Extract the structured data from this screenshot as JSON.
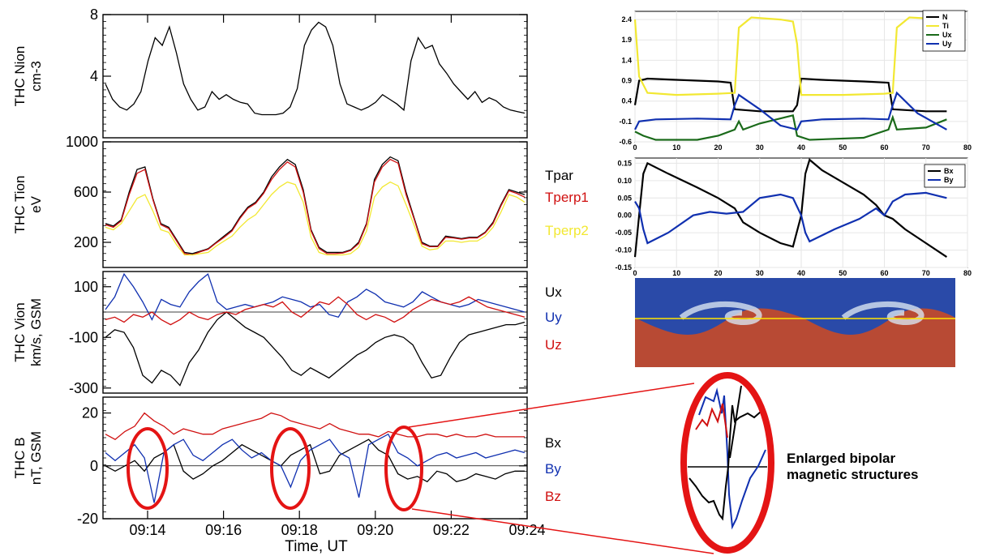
{
  "colors": {
    "black": "#000000",
    "red": "#d01010",
    "blue": "#1030b0",
    "yellow": "#f2e832",
    "green": "#1a6a1a",
    "sim_top": "#2a4aa8",
    "sim_bottom": "#b84a34",
    "circle": "#e41414"
  },
  "left_panels": [
    {
      "id": "nion",
      "ylabel": [
        "THC Nion",
        "cm-3"
      ],
      "ticks": [
        {
          "v": 4,
          "label": "4"
        },
        {
          "v": 8,
          "label": "8"
        }
      ],
      "ylim": [
        0,
        8
      ],
      "series": [
        {
          "label": "",
          "color": "black",
          "values": [
            3.5,
            2.5,
            2.0,
            1.8,
            2.2,
            3,
            5,
            6.5,
            6,
            7.2,
            5.5,
            3.5,
            2.5,
            1.8,
            2,
            3,
            2.5,
            2.8,
            2.5,
            2.3,
            2.2,
            1.6,
            1.5,
            1.5,
            1.5,
            1.6,
            2.0,
            3.2,
            6.0,
            7.0,
            7.5,
            7.2,
            6.0,
            3.5,
            2.2,
            2.0,
            1.8,
            2.0,
            2.3,
            2.8,
            2.5,
            2.2,
            1.8,
            5.0,
            6.5,
            5.8,
            6.0,
            4.8,
            4.2,
            3.5,
            3.0,
            2.5,
            3.0,
            2.3,
            2.6,
            2.4,
            2.0,
            1.8,
            1.7,
            1.6
          ]
        }
      ]
    },
    {
      "id": "tion",
      "ylabel": [
        "THC Tion",
        "eV"
      ],
      "ticks": [
        {
          "v": 200,
          "label": "200"
        },
        {
          "v": 600,
          "label": "600"
        },
        {
          "v": 1000,
          "label": "1000"
        }
      ],
      "ylim": [
        0,
        1000
      ],
      "series": [
        {
          "label": "Tpar",
          "color": "black",
          "values": [
            350,
            330,
            380,
            600,
            780,
            800,
            550,
            350,
            320,
            220,
            120,
            110,
            130,
            150,
            200,
            250,
            300,
            400,
            480,
            520,
            600,
            720,
            800,
            860,
            820,
            620,
            300,
            160,
            120,
            120,
            120,
            140,
            200,
            350,
            700,
            820,
            880,
            850,
            600,
            400,
            200,
            170,
            170,
            250,
            240,
            230,
            240,
            240,
            280,
            360,
            500,
            620,
            600,
            580
          ]
        },
        {
          "label": "Tperp1",
          "color": "red",
          "values": [
            340,
            320,
            370,
            580,
            750,
            780,
            540,
            340,
            310,
            210,
            110,
            100,
            125,
            145,
            195,
            240,
            290,
            390,
            470,
            510,
            590,
            700,
            780,
            840,
            800,
            600,
            290,
            150,
            110,
            110,
            115,
            135,
            190,
            340,
            680,
            800,
            860,
            830,
            580,
            390,
            190,
            165,
            165,
            240,
            235,
            225,
            235,
            235,
            275,
            350,
            490,
            610,
            590,
            560
          ]
        },
        {
          "label": "Tperp2",
          "color": "yellow",
          "values": [
            320,
            300,
            350,
            450,
            550,
            580,
            450,
            300,
            280,
            180,
            100,
            100,
            110,
            120,
            170,
            210,
            250,
            320,
            380,
            420,
            500,
            580,
            640,
            680,
            660,
            520,
            240,
            120,
            100,
            100,
            100,
            110,
            160,
            290,
            560,
            640,
            680,
            650,
            500,
            340,
            170,
            140,
            150,
            210,
            210,
            200,
            210,
            210,
            250,
            320,
            440,
            580,
            560,
            520
          ]
        }
      ]
    },
    {
      "id": "vion",
      "ylabel": [
        "THC Vion",
        "km/s, GSM"
      ],
      "ticks": [
        {
          "v": -300,
          "label": "-300"
        },
        {
          "v": -100,
          "label": "-100"
        },
        {
          "v": 100,
          "label": "100"
        }
      ],
      "ylim": [
        -320,
        160
      ],
      "series": [
        {
          "label": "Ux",
          "color": "black",
          "values": [
            -100,
            -70,
            -80,
            -140,
            -250,
            -280,
            -230,
            -250,
            -290,
            -200,
            -150,
            -80,
            -30,
            0,
            -30,
            -60,
            -80,
            -100,
            -140,
            -180,
            -230,
            -250,
            -220,
            -240,
            -260,
            -230,
            -200,
            -170,
            -150,
            -120,
            -100,
            -90,
            -100,
            -130,
            -200,
            -260,
            -250,
            -180,
            -120,
            -90,
            -80,
            -70,
            -60,
            -50,
            -50,
            -40
          ]
        },
        {
          "label": "Uy",
          "color": "blue",
          "values": [
            10,
            60,
            150,
            100,
            40,
            -30,
            50,
            30,
            20,
            80,
            120,
            150,
            40,
            10,
            20,
            30,
            20,
            30,
            40,
            60,
            50,
            40,
            20,
            30,
            -10,
            -20,
            40,
            60,
            90,
            70,
            40,
            30,
            20,
            40,
            80,
            60,
            40,
            30,
            20,
            30,
            50,
            40,
            30,
            20,
            10,
            0
          ]
        },
        {
          "label": "Uz",
          "color": "red",
          "values": [
            -30,
            -20,
            -40,
            -10,
            -20,
            0,
            -30,
            -50,
            -30,
            0,
            -20,
            -30,
            -10,
            0,
            -10,
            10,
            20,
            30,
            20,
            40,
            0,
            -20,
            10,
            40,
            30,
            60,
            30,
            -10,
            -30,
            -10,
            -20,
            -40,
            -20,
            10,
            30,
            50,
            40,
            30,
            40,
            60,
            40,
            20,
            10,
            0,
            -10,
            -20
          ]
        }
      ]
    },
    {
      "id": "bfield",
      "ylabel": [
        "THC B",
        "nT, GSM"
      ],
      "ticks": [
        {
          "v": -20,
          "label": "-20"
        },
        {
          "v": 0,
          "label": "0"
        },
        {
          "v": 20,
          "label": "20"
        }
      ],
      "ylim": [
        -20,
        26
      ],
      "series": [
        {
          "label": "Bx",
          "color": "black",
          "values": [
            0,
            -2,
            0,
            2,
            -2,
            3,
            5,
            8,
            -2,
            -5,
            -3,
            0,
            2,
            5,
            8,
            6,
            4,
            2,
            0,
            4,
            6,
            8,
            -3,
            -2,
            4,
            6,
            8,
            10,
            6,
            4,
            -3,
            -5,
            -4,
            -6,
            -2,
            -3,
            -6,
            -5,
            -3,
            -4,
            -5,
            -3,
            -2,
            -2
          ]
        },
        {
          "label": "By",
          "color": "blue",
          "values": [
            5,
            2,
            5,
            8,
            3,
            -14,
            5,
            8,
            10,
            4,
            2,
            5,
            8,
            10,
            6,
            3,
            5,
            2,
            0,
            -8,
            2,
            6,
            8,
            10,
            5,
            3,
            -12,
            8,
            10,
            12,
            5,
            3,
            0,
            2,
            4,
            5,
            3,
            4,
            5,
            3,
            4,
            5,
            6,
            5
          ]
        },
        {
          "label": "Bz",
          "color": "red",
          "values": [
            12,
            10,
            13,
            15,
            20,
            17,
            15,
            12,
            14,
            13,
            12,
            12,
            14,
            15,
            16,
            17,
            18,
            20,
            19,
            17,
            16,
            15,
            14,
            16,
            14,
            13,
            12,
            12,
            11,
            13,
            12,
            11,
            11,
            12,
            12,
            11,
            12,
            11,
            11,
            12,
            11,
            11,
            11,
            11
          ]
        }
      ]
    }
  ],
  "time_axis": {
    "xlabel": "Time, UT",
    "ticks": [
      "09:14",
      "09:16",
      "09:18",
      "09:20",
      "09:22",
      "09:24"
    ]
  },
  "sim_panel_top": {
    "xticks": [
      "0",
      "10",
      "20",
      "30",
      "40",
      "50",
      "60",
      "70",
      "80"
    ],
    "yticks": [
      "-0.6",
      "-0.1",
      "0.4",
      "0.9",
      "1.4",
      "1.9",
      "2.4"
    ],
    "legend": [
      "N",
      "Ti",
      "Ux",
      "Uy"
    ],
    "series": [
      {
        "name": "N",
        "color": "black",
        "points": [
          [
            0,
            0.3
          ],
          [
            1,
            0.9
          ],
          [
            3,
            0.95
          ],
          [
            10,
            0.92
          ],
          [
            20,
            0.88
          ],
          [
            23,
            0.85
          ],
          [
            24,
            0.2
          ],
          [
            30,
            0.15
          ],
          [
            38,
            0.15
          ],
          [
            39,
            0.3
          ],
          [
            40,
            0.95
          ],
          [
            45,
            0.92
          ],
          [
            55,
            0.88
          ],
          [
            61,
            0.85
          ],
          [
            62,
            0.2
          ],
          [
            70,
            0.15
          ],
          [
            75,
            0.15
          ]
        ]
      },
      {
        "name": "Ti",
        "color": "yellow",
        "points": [
          [
            0,
            2.4
          ],
          [
            1,
            1.0
          ],
          [
            3,
            0.6
          ],
          [
            10,
            0.55
          ],
          [
            20,
            0.58
          ],
          [
            24,
            0.6
          ],
          [
            25,
            2.2
          ],
          [
            28,
            2.45
          ],
          [
            35,
            2.4
          ],
          [
            38,
            2.35
          ],
          [
            39,
            1.8
          ],
          [
            40,
            0.55
          ],
          [
            50,
            0.55
          ],
          [
            60,
            0.58
          ],
          [
            62,
            0.6
          ],
          [
            63,
            2.2
          ],
          [
            66,
            2.45
          ],
          [
            75,
            2.4
          ]
        ]
      },
      {
        "name": "Ux",
        "color": "green",
        "points": [
          [
            0,
            -0.35
          ],
          [
            2,
            -0.45
          ],
          [
            5,
            -0.55
          ],
          [
            15,
            -0.55
          ],
          [
            20,
            -0.45
          ],
          [
            24,
            -0.3
          ],
          [
            25,
            -0.1
          ],
          [
            26,
            -0.3
          ],
          [
            30,
            -0.15
          ],
          [
            38,
            0.05
          ],
          [
            39,
            -0.45
          ],
          [
            42,
            -0.55
          ],
          [
            55,
            -0.5
          ],
          [
            61,
            -0.3
          ],
          [
            62,
            0.0
          ],
          [
            63,
            -0.3
          ],
          [
            70,
            -0.25
          ],
          [
            75,
            -0.05
          ]
        ]
      },
      {
        "name": "Uy",
        "color": "blue",
        "points": [
          [
            0,
            -0.3
          ],
          [
            1,
            -0.1
          ],
          [
            5,
            -0.05
          ],
          [
            15,
            -0.03
          ],
          [
            23,
            -0.05
          ],
          [
            24,
            0.3
          ],
          [
            25,
            0.55
          ],
          [
            30,
            0.2
          ],
          [
            35,
            -0.2
          ],
          [
            39,
            -0.3
          ],
          [
            40,
            -0.1
          ],
          [
            45,
            -0.05
          ],
          [
            55,
            -0.03
          ],
          [
            61,
            -0.05
          ],
          [
            62,
            0.3
          ],
          [
            63,
            0.6
          ],
          [
            68,
            0.1
          ],
          [
            75,
            -0.3
          ]
        ]
      }
    ]
  },
  "sim_panel_mid": {
    "xticks": [
      "0",
      "10",
      "20",
      "30",
      "40",
      "50",
      "60",
      "70",
      "80"
    ],
    "yticks": [
      "-0.15",
      "-0.10",
      "-0.05",
      "0.00",
      "0.05",
      "0.10",
      "0.15"
    ],
    "legend": [
      "Bx",
      "By"
    ],
    "series": [
      {
        "name": "Bx",
        "color": "black",
        "points": [
          [
            0,
            -0.12
          ],
          [
            1,
            0.0
          ],
          [
            2,
            0.12
          ],
          [
            3,
            0.15
          ],
          [
            8,
            0.12
          ],
          [
            15,
            0.08
          ],
          [
            20,
            0.05
          ],
          [
            24,
            0.02
          ],
          [
            26,
            -0.02
          ],
          [
            30,
            -0.05
          ],
          [
            35,
            -0.08
          ],
          [
            38,
            -0.09
          ],
          [
            40,
            0.0
          ],
          [
            41,
            0.12
          ],
          [
            42,
            0.16
          ],
          [
            45,
            0.13
          ],
          [
            55,
            0.06
          ],
          [
            58,
            0.03
          ],
          [
            60,
            0.0
          ],
          [
            62,
            -0.01
          ],
          [
            65,
            -0.04
          ],
          [
            70,
            -0.08
          ],
          [
            75,
            -0.12
          ]
        ]
      },
      {
        "name": "By",
        "color": "blue",
        "points": [
          [
            0,
            0.04
          ],
          [
            1,
            0.02
          ],
          [
            2,
            -0.04
          ],
          [
            3,
            -0.08
          ],
          [
            8,
            -0.05
          ],
          [
            14,
            0.0
          ],
          [
            18,
            0.01
          ],
          [
            22,
            0.005
          ],
          [
            26,
            0.01
          ],
          [
            30,
            0.05
          ],
          [
            35,
            0.06
          ],
          [
            38,
            0.05
          ],
          [
            40,
            0.0
          ],
          [
            41,
            -0.05
          ],
          [
            42,
            -0.075
          ],
          [
            48,
            -0.04
          ],
          [
            54,
            -0.01
          ],
          [
            58,
            0.02
          ],
          [
            60,
            0.0
          ],
          [
            62,
            0.04
          ],
          [
            65,
            0.06
          ],
          [
            70,
            0.065
          ],
          [
            75,
            0.05
          ]
        ]
      }
    ]
  },
  "annotation_label": [
    "Enlarged bipolar",
    "magnetic structures"
  ]
}
